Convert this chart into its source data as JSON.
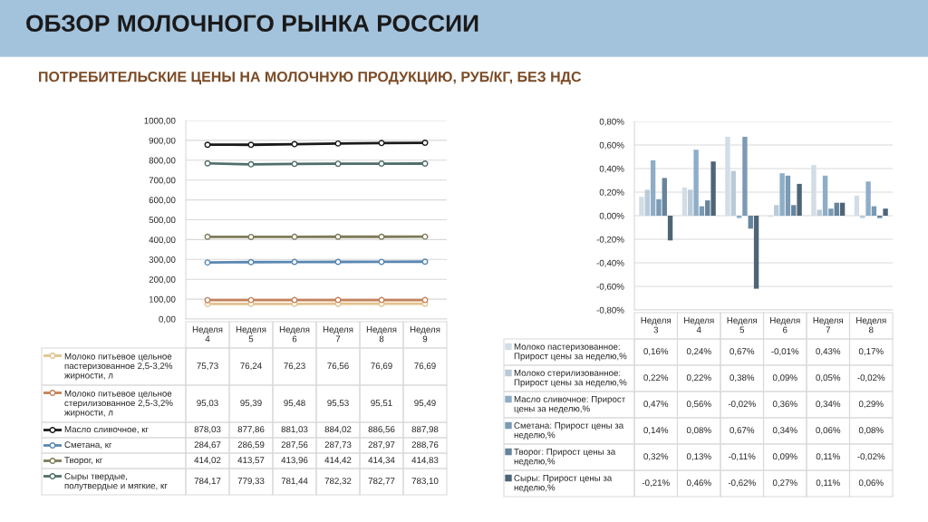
{
  "chart_data": [
    {
      "type": "line",
      "title": "ОБЗОР МОЛОЧНОГО РЫНКА РОССИИ",
      "subtitle": "ПОТРЕБИТЕЛЬСКИЕ ЦЕНЫ НА МОЛОЧНУЮ ПРОДУКЦИЮ, РУБ/КГ, БЕЗ НДС",
      "categories": [
        "Неделя 4",
        "Неделя 5",
        "Неделя 6",
        "Неделя 7",
        "Неделя 8",
        "Неделя 9"
      ],
      "series": [
        {
          "name": "Молоко питьевое цельное пастеризованное 2,5-3,2% жирности, л",
          "color": "#e2c28e",
          "values": [
            75.73,
            76.24,
            76.23,
            76.56,
            76.69,
            76.69
          ],
          "value_labels": [
            "75,73",
            "76,24",
            "76,23",
            "76,56",
            "76,69",
            "76,69"
          ]
        },
        {
          "name": "Молоко питьевое цельное стерилизованное 2,5-3,2% жирности, л",
          "color": "#c4825a",
          "values": [
            95.03,
            95.39,
            95.48,
            95.53,
            95.51,
            95.49
          ],
          "value_labels": [
            "95,03",
            "95,39",
            "95,48",
            "95,53",
            "95,51",
            "95,49"
          ]
        },
        {
          "name": "Масло сливочное, кг",
          "color": "#1a1a1a",
          "values": [
            878.03,
            877.86,
            881.03,
            884.02,
            886.56,
            887.98
          ],
          "value_labels": [
            "878,03",
            "877,86",
            "881,03",
            "884,02",
            "886,56",
            "887,98"
          ]
        },
        {
          "name": "Сметана, кг",
          "color": "#5a87b2",
          "values": [
            284.67,
            286.59,
            287.56,
            287.73,
            287.97,
            288.76
          ],
          "value_labels": [
            "284,67",
            "286,59",
            "287,56",
            "287,73",
            "287,97",
            "288,76"
          ]
        },
        {
          "name": "Творог, кг",
          "color": "#7d7b57",
          "values": [
            414.02,
            413.57,
            413.96,
            414.42,
            414.34,
            414.83
          ],
          "value_labels": [
            "414,02",
            "413,57",
            "413,96",
            "414,42",
            "414,34",
            "414,83"
          ]
        },
        {
          "name": "Сыры твердые, полутвердые и мягкие, кг",
          "color": "#4f6e6a",
          "values": [
            784.17,
            779.33,
            781.44,
            782.32,
            782.77,
            783.1
          ],
          "value_labels": [
            "784,17",
            "779,33",
            "781,44",
            "782,32",
            "782,77",
            "783,10"
          ]
        }
      ],
      "ylim": [
        0,
        1000
      ],
      "yticks": [
        {
          "value": 0,
          "label": "0,00"
        },
        {
          "value": 100,
          "label": "100,00"
        },
        {
          "value": 200,
          "label": "200,00"
        },
        {
          "value": 300,
          "label": "300,00"
        },
        {
          "value": 400,
          "label": "400,00"
        },
        {
          "value": 500,
          "label": "500,00"
        },
        {
          "value": 600,
          "label": "600,00"
        },
        {
          "value": 700,
          "label": "700,00"
        },
        {
          "value": 800,
          "label": "800,00"
        },
        {
          "value": 900,
          "label": "900,00"
        },
        {
          "value": 1000,
          "label": "1000,00"
        }
      ],
      "grid": "y",
      "legend": "bottom",
      "marker": "circle",
      "line_style": "solid"
    },
    {
      "type": "bar",
      "categories": [
        "Неделя 3",
        "Неделя 4",
        "Неделя 5",
        "Неделя 6",
        "Неделя 7",
        "Неделя 8"
      ],
      "series": [
        {
          "name": "Молоко пастеризованное: Прирост цены за неделю,%",
          "color": "#d3dde6",
          "values": [
            0.16,
            0.24,
            0.67,
            -0.01,
            0.43,
            0.17
          ],
          "value_labels": [
            "0,16%",
            "0,24%",
            "0,67%",
            "-0,01%",
            "0,43%",
            "0,17%"
          ]
        },
        {
          "name": "Молоко стерилизованное: Прирост цены за неделю,%",
          "color": "#b9cad8",
          "values": [
            0.22,
            0.22,
            0.38,
            0.09,
            0.05,
            -0.02
          ],
          "value_labels": [
            "0,22%",
            "0,22%",
            "0,38%",
            "0,09%",
            "0,05%",
            "-0,02%"
          ]
        },
        {
          "name": "Масло сливочное: Прирост цены за неделю,%",
          "color": "#8eadc6",
          "values": [
            0.47,
            0.56,
            -0.02,
            0.36,
            0.34,
            0.29
          ],
          "value_labels": [
            "0,47%",
            "0,56%",
            "-0,02%",
            "0,36%",
            "0,34%",
            "0,29%"
          ]
        },
        {
          "name": "Сметана: Прирост цены за неделю,%",
          "color": "#7b9ab3",
          "values": [
            0.14,
            0.08,
            0.67,
            0.34,
            0.06,
            0.08
          ],
          "value_labels": [
            "0,14%",
            "0,08%",
            "0,67%",
            "0,34%",
            "0,06%",
            "0,08%"
          ]
        },
        {
          "name": "Творог: Прирост цены за неделю,%",
          "color": "#66859d",
          "values": [
            0.32,
            0.13,
            -0.11,
            0.09,
            0.11,
            -0.02
          ],
          "value_labels": [
            "0,32%",
            "0,13%",
            "-0,11%",
            "0,09%",
            "0,11%",
            "-0,02%"
          ]
        },
        {
          "name": "Сыры: Прирост цены за неделю,%",
          "color": "#4e6577",
          "values": [
            -0.21,
            0.46,
            -0.62,
            0.27,
            0.11,
            0.06
          ],
          "value_labels": [
            "-0,21%",
            "0,46%",
            "-0,62%",
            "0,27%",
            "0,11%",
            "0,06%"
          ]
        }
      ],
      "ylim": [
        -0.8,
        0.8
      ],
      "yticks": [
        {
          "value": -0.8,
          "label": "-0,80%"
        },
        {
          "value": -0.6,
          "label": "-0,60%"
        },
        {
          "value": -0.4,
          "label": "-0,40%"
        },
        {
          "value": -0.2,
          "label": "-0,20%"
        },
        {
          "value": 0,
          "label": "0,00%"
        },
        {
          "value": 0.2,
          "label": "0,20%"
        },
        {
          "value": 0.4,
          "label": "0,40%"
        },
        {
          "value": 0.6,
          "label": "0,60%"
        },
        {
          "value": 0.8,
          "label": "0,80%"
        }
      ],
      "grid": "y",
      "legend": "bottom"
    }
  ]
}
